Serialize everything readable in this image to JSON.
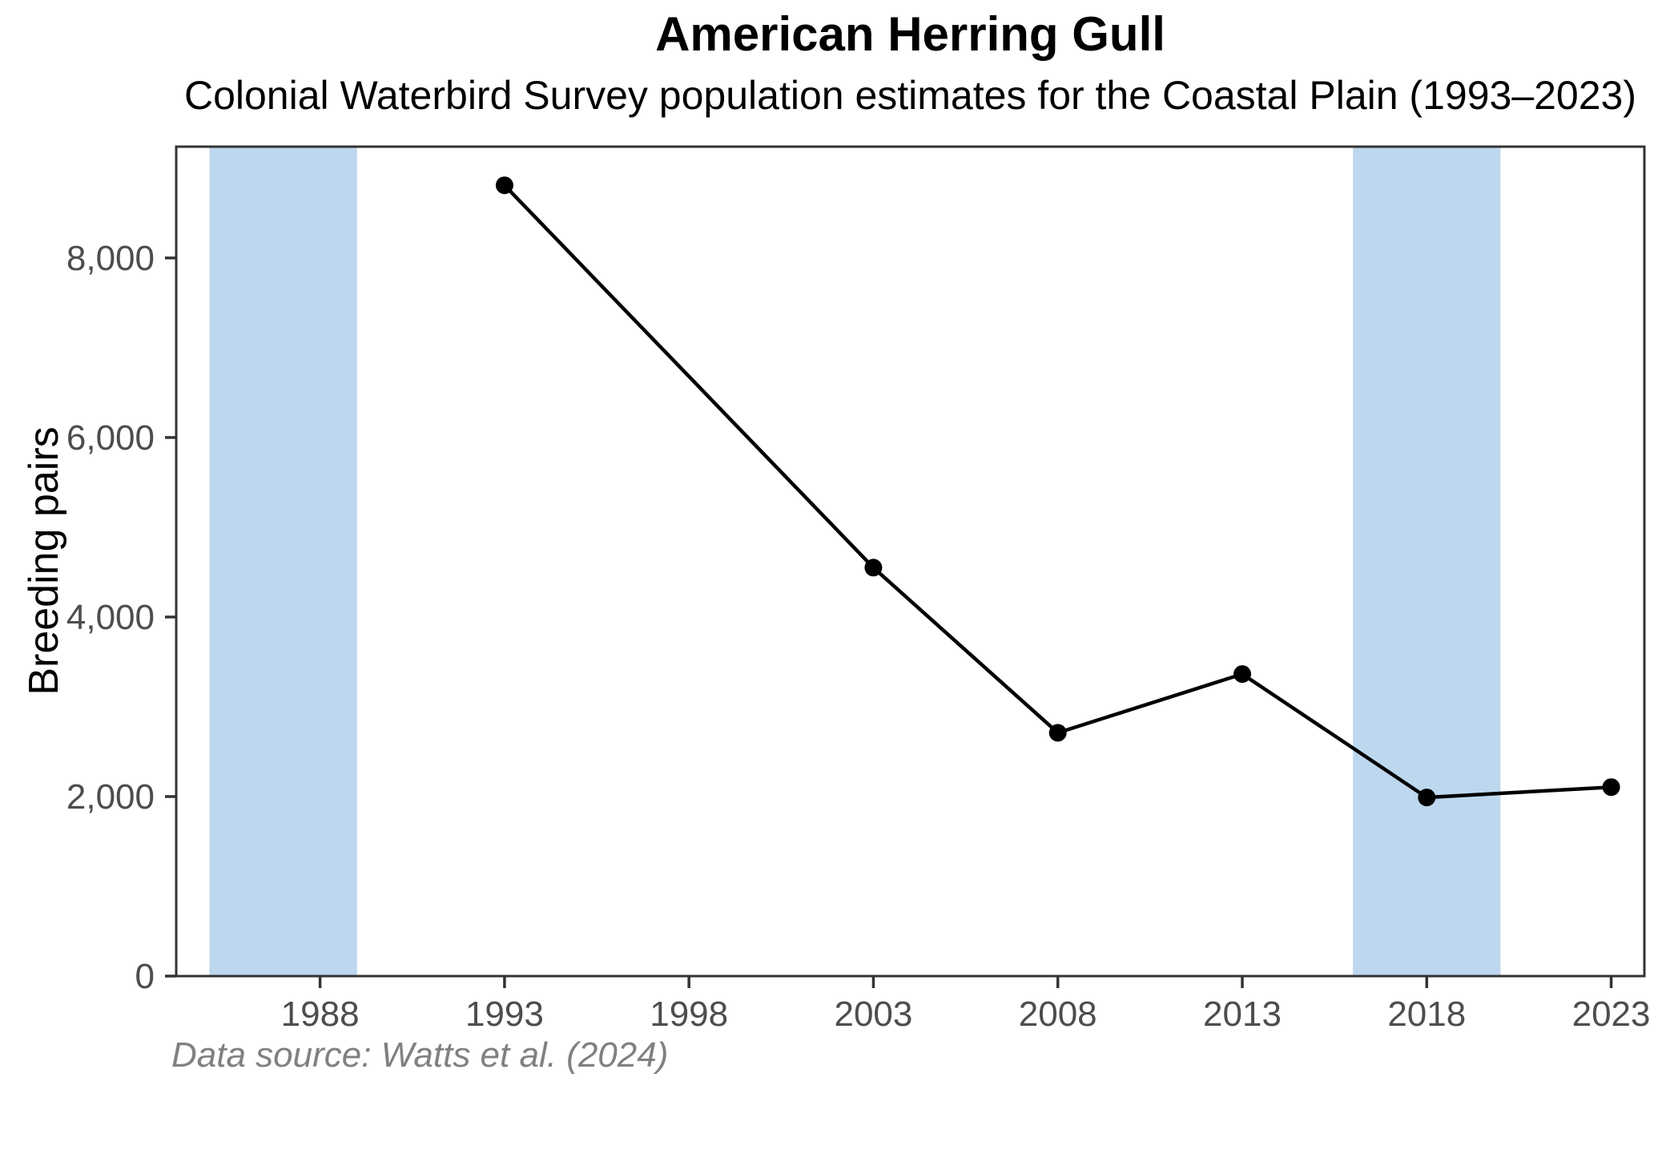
{
  "header": {
    "title": "American Herring Gull",
    "subtitle": "Colonial Waterbird Survey population estimates for the Coastal Plain (1993–2023)"
  },
  "caption": "Data source: Watts et al. (2024)",
  "chart_data": {
    "type": "line",
    "title": "American Herring Gull",
    "subtitle": "Colonial Waterbird Survey population estimates for the Coastal Plain (1993–2023)",
    "caption": "Data source: Watts et al. (2024)",
    "xlabel": "",
    "ylabel": "Breeding pairs",
    "series": [
      {
        "name": "Breeding pairs",
        "x": [
          1993,
          2003,
          2008,
          2013,
          2018,
          2023
        ],
        "values": [
          8810,
          4550,
          2710,
          3365,
          1990,
          2105
        ]
      }
    ],
    "x_ticks": [
      1988,
      1993,
      1998,
      2003,
      2008,
      2013,
      2018,
      2023
    ],
    "x_tick_labels": [
      "1988",
      "1993",
      "1998",
      "2003",
      "2008",
      "2013",
      "2018",
      "2023"
    ],
    "y_ticks": [
      0,
      2000,
      4000,
      6000,
      8000
    ],
    "y_tick_labels": [
      "0",
      "2,000",
      "4,000",
      "6,000",
      "8,000"
    ],
    "xlim": [
      1984.1,
      2023.9
    ],
    "ylim": [
      0,
      9240
    ],
    "grid": false,
    "legend": "none",
    "shaded_bands": [
      {
        "from": 1985,
        "to": 1989
      },
      {
        "from": 2016,
        "to": 2020
      }
    ],
    "colors": {
      "line": "#000000",
      "point": "#000000",
      "band": "#BDD7EE",
      "tick_text": "#4D4D4D",
      "axis_ticks": "#333333",
      "panel_border": "#333333",
      "caption_text": "#808080",
      "title_text": "#000000",
      "background": "#FFFFFF"
    }
  }
}
